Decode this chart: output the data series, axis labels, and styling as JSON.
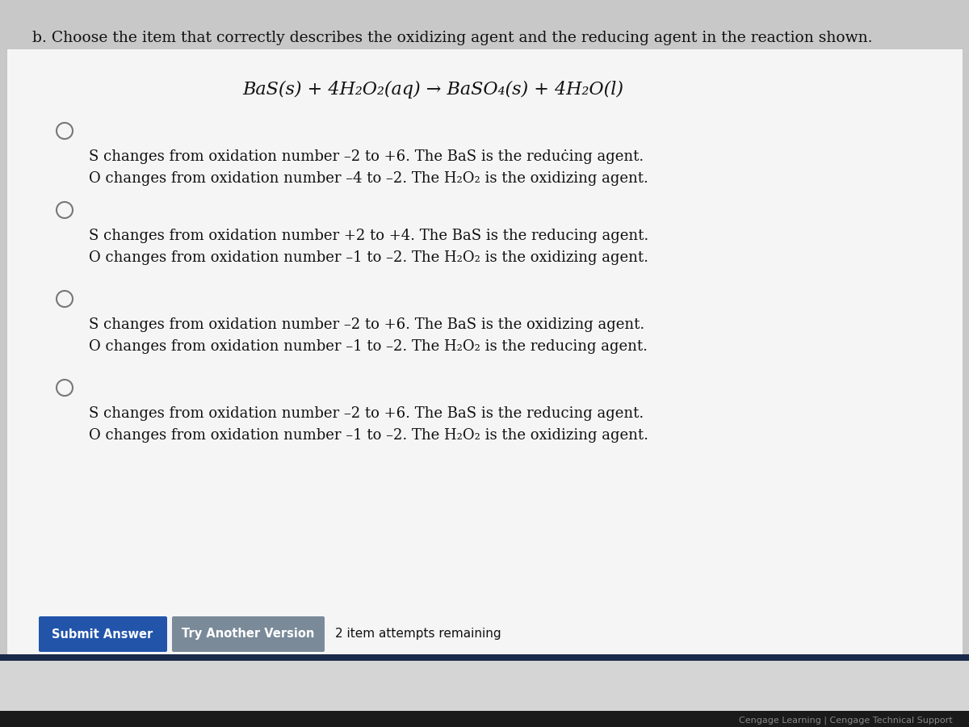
{
  "outer_bg": "#c8c8c8",
  "content_bg": "#f0f0f0",
  "white_panel": "#f5f5f5",
  "title": "b. Choose the item that correctly describes the oxidizing agent and the reducing agent in the reaction shown.",
  "equation_parts": [
    {
      "text": "BaS(",
      "style": "italic"
    },
    {
      "text": "s",
      "style": "italic"
    },
    {
      "text": ") + 4H",
      "style": "italic"
    },
    {
      "text": "2",
      "style": "sub"
    },
    {
      "text": "O",
      "style": "italic"
    },
    {
      "text": "2",
      "style": "sub"
    },
    {
      "text": "(aq) → BaSO",
      "style": "italic"
    },
    {
      "text": "4",
      "style": "sub"
    },
    {
      "text": "(",
      "style": "italic"
    },
    {
      "text": "s",
      "style": "italic"
    },
    {
      "text": ") + 4H",
      "style": "italic"
    },
    {
      "text": "2",
      "style": "sub"
    },
    {
      "text": "O(",
      "style": "italic"
    },
    {
      "text": "l",
      "style": "italic"
    },
    {
      "text": ")",
      "style": "italic"
    }
  ],
  "equation_display": "BaS(s) + 4H₂O₂(aq) → BaSO₄(s) + 4H₂O(l)",
  "options": [
    {
      "line1": "S changes from oxidation number –2 to +6. The BaS is the reduċing agent.",
      "line2": "O changes from oxidation number –4 to –2. The H₂O₂ is the oxidizing agent."
    },
    {
      "line1": "S changes from oxidation number +2 to +4. The BaS is the reducing agent.",
      "line2": "O changes from oxidation number –1 to –2. The H₂O₂ is the oxidizing agent."
    },
    {
      "line1": "S changes from oxidation number –2 to +6. The BaS is the oxidizing agent.",
      "line2": "O changes from oxidation number –1 to –2. The H₂O₂ is the reducing agent."
    },
    {
      "line1": "S changes from oxidation number –2 to +6. The BaS is the reducing agent.",
      "line2": "O changes from oxidation number –1 to –2. The H₂O₂ is the oxidizing agent."
    }
  ],
  "submit_btn_color": "#2255aa",
  "try_btn_color": "#7a8a99",
  "submit_btn_text": "Submit Answer",
  "try_btn_text": "Try Another Version",
  "attempts_text": "2 item attempts remaining",
  "footer_text": "Cengage Learning | Cengage Technical Support",
  "text_color": "#111111",
  "radio_color": "#777777",
  "separator_color": "#1a2a4a",
  "font_size_title": 13.5,
  "font_size_equation": 16,
  "font_size_option": 13,
  "font_size_btn": 10.5,
  "font_size_footer": 8,
  "font_size_attempts": 11
}
